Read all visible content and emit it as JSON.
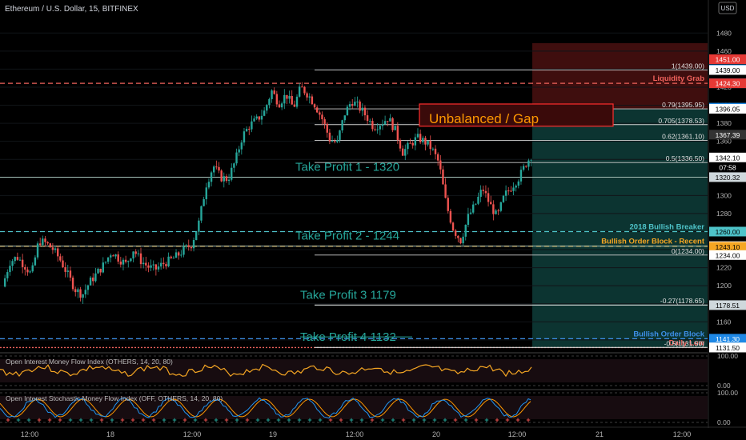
{
  "header": {
    "symbol_title": "Ethereum / U.S. Dollar, 15, BITFINEX",
    "currency_button": "USD"
  },
  "chart_data": {
    "type": "candlestick",
    "symbol": "Ethereum / U.S. Dollar",
    "interval": "15",
    "exchange": "BITFINEX",
    "currency": "USD",
    "ylim": [
      1131,
      1490
    ],
    "y_ticks": [
      1480,
      1460,
      1440,
      1420,
      1400,
      1380,
      1360,
      1340,
      1320,
      1300,
      1280,
      1260,
      1240,
      1220,
      1200,
      1180,
      1160,
      1140
    ],
    "x_ticks": [
      "12:00",
      "18",
      "12:00",
      "19",
      "12:00",
      "20",
      "12:00",
      "21",
      "12:00"
    ],
    "price_path": [
      [
        0,
        1199
      ],
      [
        0.03,
        1226
      ],
      [
        0.06,
        1232
      ],
      [
        0.09,
        1223
      ],
      [
        0.12,
        1212
      ],
      [
        0.15,
        1250
      ],
      [
        0.18,
        1247
      ],
      [
        0.21,
        1240
      ],
      [
        0.24,
        1228
      ],
      [
        0.27,
        1212
      ],
      [
        0.3,
        1196
      ],
      [
        0.33,
        1190
      ],
      [
        0.36,
        1204
      ],
      [
        0.39,
        1214
      ],
      [
        0.42,
        1224
      ],
      [
        0.45,
        1238
      ],
      [
        0.48,
        1230
      ],
      [
        0.51,
        1224
      ],
      [
        0.54,
        1240
      ],
      [
        0.57,
        1228
      ],
      [
        0.6,
        1221
      ],
      [
        0.63,
        1218
      ],
      [
        0.66,
        1224
      ],
      [
        0.69,
        1228
      ],
      [
        0.72,
        1233
      ],
      [
        0.75,
        1240
      ],
      [
        0.78,
        1246
      ],
      [
        0.81,
        1270
      ],
      [
        0.84,
        1312
      ],
      [
        0.87,
        1333
      ],
      [
        0.9,
        1320
      ],
      [
        0.93,
        1318
      ],
      [
        0.96,
        1338
      ],
      [
        0.99,
        1366
      ],
      [
        1.02,
        1378
      ],
      [
        1.05,
        1384
      ],
      [
        1.08,
        1393
      ],
      [
        1.11,
        1416
      ],
      [
        1.14,
        1402
      ],
      [
        1.17,
        1412
      ],
      [
        1.2,
        1397
      ],
      [
        1.23,
        1420
      ],
      [
        1.26,
        1412
      ],
      [
        1.29,
        1400
      ],
      [
        1.32,
        1384
      ],
      [
        1.35,
        1362
      ],
      [
        1.38,
        1358
      ],
      [
        1.41,
        1390
      ],
      [
        1.44,
        1405
      ],
      [
        1.47,
        1398
      ],
      [
        1.5,
        1388
      ],
      [
        1.53,
        1376
      ],
      [
        1.56,
        1380
      ],
      [
        1.59,
        1386
      ],
      [
        1.62,
        1372
      ],
      [
        1.65,
        1348
      ],
      [
        1.68,
        1356
      ],
      [
        1.71,
        1364
      ],
      [
        1.74,
        1360
      ],
      [
        1.77,
        1352
      ],
      [
        1.8,
        1336
      ],
      [
        1.83,
        1290
      ],
      [
        1.86,
        1262
      ],
      [
        1.89,
        1250
      ],
      [
        1.92,
        1276
      ],
      [
        1.95,
        1290
      ],
      [
        1.98,
        1308
      ],
      [
        2.01,
        1290
      ],
      [
        2.04,
        1276
      ],
      [
        2.07,
        1300
      ],
      [
        2.1,
        1310
      ],
      [
        2.13,
        1320
      ],
      [
        2.16,
        1336
      ],
      [
        2.18,
        1344
      ]
    ],
    "levels": [
      {
        "label": "Liquidity Grab",
        "price": 1424.3,
        "color": "#f0625c",
        "style": "dashed"
      },
      {
        "label": "2018 Bullish Breaker",
        "price": 1260.0,
        "color": "#4ec3c9",
        "style": "dashed"
      },
      {
        "label": "Bullish Order Block - Recent",
        "price": 1243.85,
        "color": "#f5a623",
        "style": "dashed"
      },
      {
        "label": "Bullish Order Block",
        "price": 1141.3,
        "color": "#3d8fe8",
        "style": "dashed"
      },
      {
        "label": "Daily Low",
        "price": 1131.5,
        "color": "#f0625c",
        "style": "dotted"
      }
    ],
    "take_profits": [
      {
        "label": "Take Profit 1 - 1320",
        "price": 1320.32
      },
      {
        "label": "Take Profit 2 - 1244",
        "price": 1243.85
      },
      {
        "label": "Take Profit 3 1179",
        "price": 1178.51
      },
      {
        "label": "Take Profit 4 1132",
        "price": 1131.74
      }
    ],
    "fib_levels": [
      {
        "label": "1(1439.00)",
        "price": 1439.0
      },
      {
        "label": "0.79(1395.95)",
        "price": 1395.95
      },
      {
        "label": "0.705(1378.53)",
        "price": 1378.53
      },
      {
        "label": "0.62(1361.10)",
        "price": 1361.1
      },
      {
        "label": "0.5(1336.50)",
        "price": 1336.5
      },
      {
        "label": "0(1234.00)",
        "price": 1234.0
      },
      {
        "label": "-0.27(1178.65)",
        "price": 1178.65
      },
      {
        "label": "-0.5(1131.50)",
        "price": 1131.5
      }
    ],
    "gap_label": "Unbalanced / Gap",
    "gap_zone": [
      1378.53,
      1396.05
    ],
    "position_entry": 1396.05,
    "position_stop": 1451.0,
    "position_target": 1131.5,
    "countdown": "07:58",
    "price_badges": [
      {
        "text": "1451.00",
        "price": 1451.0,
        "bg": "#e53935",
        "fg": "#ffffff"
      },
      {
        "text": "1439.80",
        "price": 1439.8,
        "bg": "#1e88e5",
        "fg": "#ffffff"
      },
      {
        "text": "1439.00",
        "price": 1439.0,
        "bg": "#ffffff",
        "fg": "#000000"
      },
      {
        "text": "1424.34",
        "price": 1424.34,
        "bg": "#1e88e5",
        "fg": "#ffffff"
      },
      {
        "text": "1424.30",
        "price": 1424.3,
        "bg": "#e53935",
        "fg": "#ffffff"
      },
      {
        "text": "1397.30",
        "price": 1397.3,
        "bg": "#1e88e5",
        "fg": "#ffffff"
      },
      {
        "text": "1396.05",
        "price": 1396.05,
        "bg": "#ffffff",
        "fg": "#000000"
      },
      {
        "text": "1367.39",
        "price": 1367.39,
        "bg": "#333333",
        "fg": "#ffffff"
      },
      {
        "text": "1342.10",
        "price": 1342.1,
        "bg": "#ffffff",
        "fg": "#000000"
      },
      {
        "text": "1320.32",
        "price": 1320.32,
        "bg": "#cfd8dc",
        "fg": "#000000"
      },
      {
        "text": "1260.00",
        "price": 1260.0,
        "bg": "#4ec3c9",
        "fg": "#000000"
      },
      {
        "text": "1243.85",
        "price": 1243.85,
        "bg": "#ffffff",
        "fg": "#000000"
      },
      {
        "text": "1243.10",
        "price": 1243.1,
        "bg": "#f5a623",
        "fg": "#000000"
      },
      {
        "text": "1234.00",
        "price": 1234.0,
        "bg": "#ffffff",
        "fg": "#000000"
      },
      {
        "text": "1178.51",
        "price": 1178.51,
        "bg": "#cfd8dc",
        "fg": "#000000"
      },
      {
        "text": "1141.30",
        "price": 1141.3,
        "bg": "#1e88e5",
        "fg": "#ffffff"
      },
      {
        "text": "1131.74",
        "price": 1131.74,
        "bg": "#cfd8dc",
        "fg": "#000000"
      },
      {
        "text": "1131.50",
        "price": 1131.5,
        "bg": "#ffffff",
        "fg": "#000000"
      }
    ],
    "indicators": [
      {
        "title": "Open Interest Money Flow Index (OTHERS, 14, 20, 80)",
        "ticks": [
          "100.00",
          "0.00"
        ]
      },
      {
        "title": "Open Interest Stochastic Money Flow Index (OFF, OTHERS, 14, 20, 80)",
        "ticks": [
          "100.00",
          "0.00"
        ]
      }
    ],
    "colors": {
      "up": "#26a69a",
      "down": "#ef5350",
      "take_profit": "#26a69a",
      "gap": "#ff9800",
      "stop_zone": "#4a1010",
      "target_zone": "#0d3a36",
      "mfi_line": "#f5a623"
    }
  }
}
